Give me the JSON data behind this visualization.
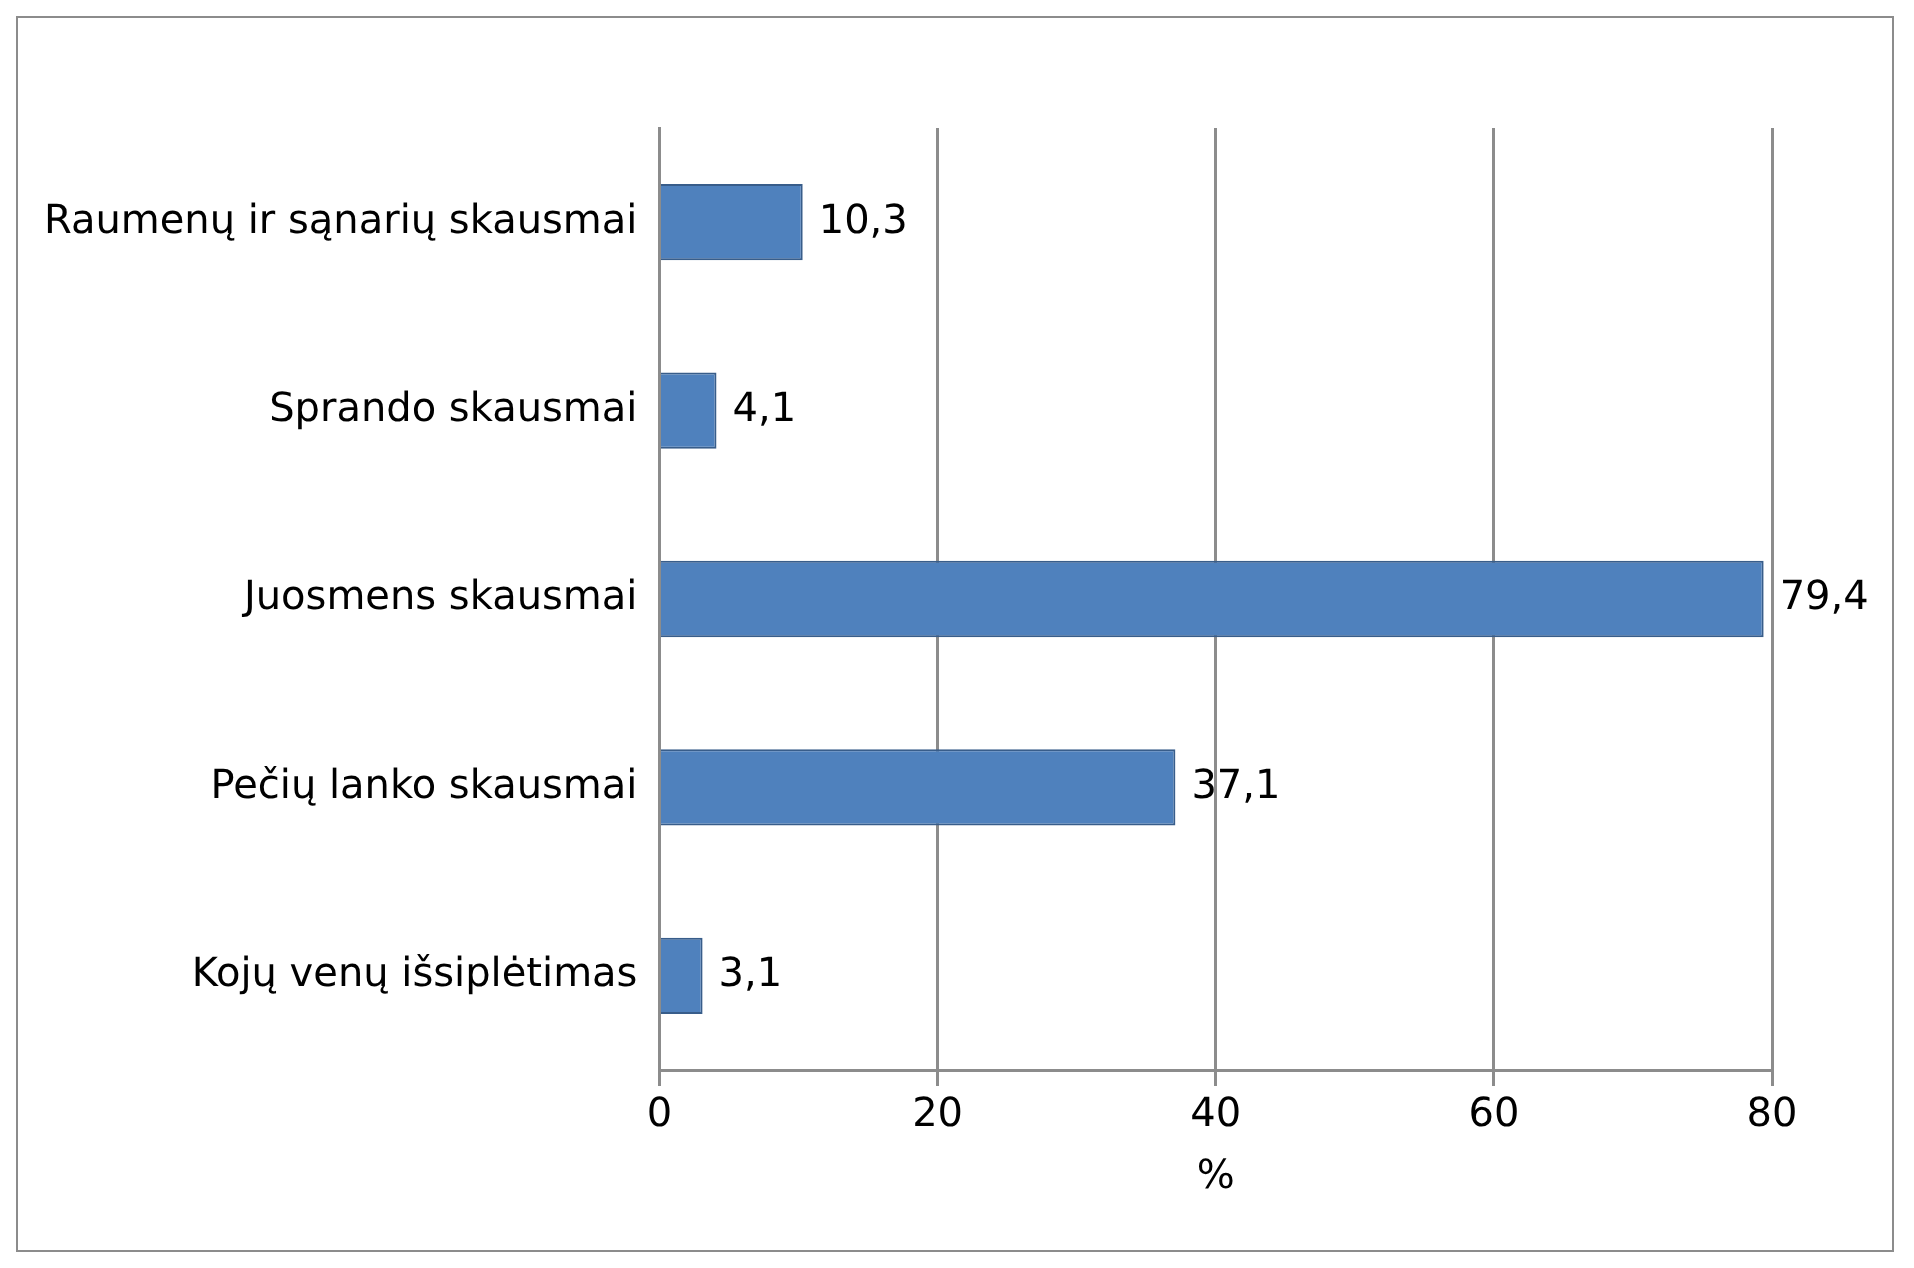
{
  "chart_data": {
    "type": "bar",
    "orientation": "horizontal",
    "xlabel": "%",
    "categories": [
      "Raumenų ir sąnarių skausmai",
      "Sprando skausmai",
      "Juosmens skausmai",
      "Pečių lanko skausmai",
      "Kojų venų išsiplėtimas"
    ],
    "values": [
      10.3,
      4.1,
      79.4,
      37.1,
      3.1
    ],
    "value_labels": [
      "10,3",
      "4,1",
      "79,4",
      "37,1",
      "3,1"
    ],
    "color": "#4f81bd",
    "xlim": [
      0,
      80
    ],
    "xticks": [
      0,
      20,
      40,
      60,
      80
    ],
    "grid": "x",
    "legend": false
  }
}
